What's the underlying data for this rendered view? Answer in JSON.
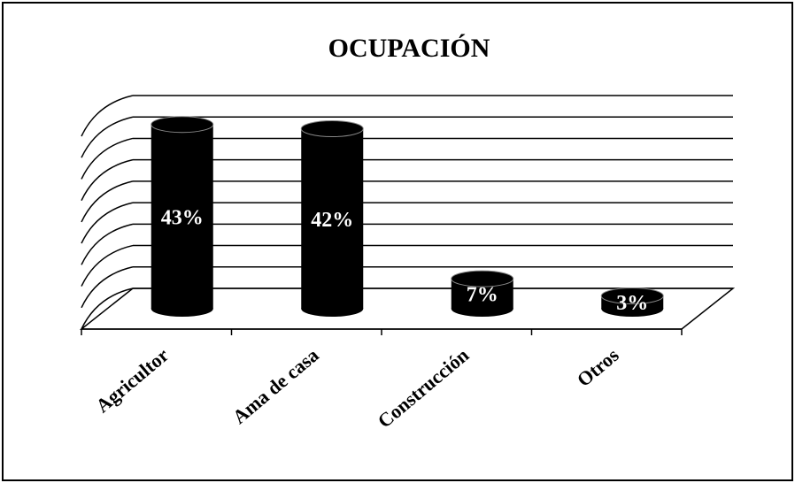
{
  "chart_data": {
    "type": "bar",
    "title": "OCUPACIÓN",
    "categories": [
      "Agricultor",
      "Ama de casa",
      "Construcción",
      "Otros"
    ],
    "values": [
      43,
      42,
      7,
      3
    ],
    "value_labels": [
      "43%",
      "42%",
      "7%",
      "3%"
    ],
    "color": "#000000",
    "ylim": [
      0,
      45
    ],
    "yticks": [
      0,
      5,
      10,
      15,
      20,
      25,
      30,
      35,
      40,
      45
    ],
    "grid": true
  }
}
